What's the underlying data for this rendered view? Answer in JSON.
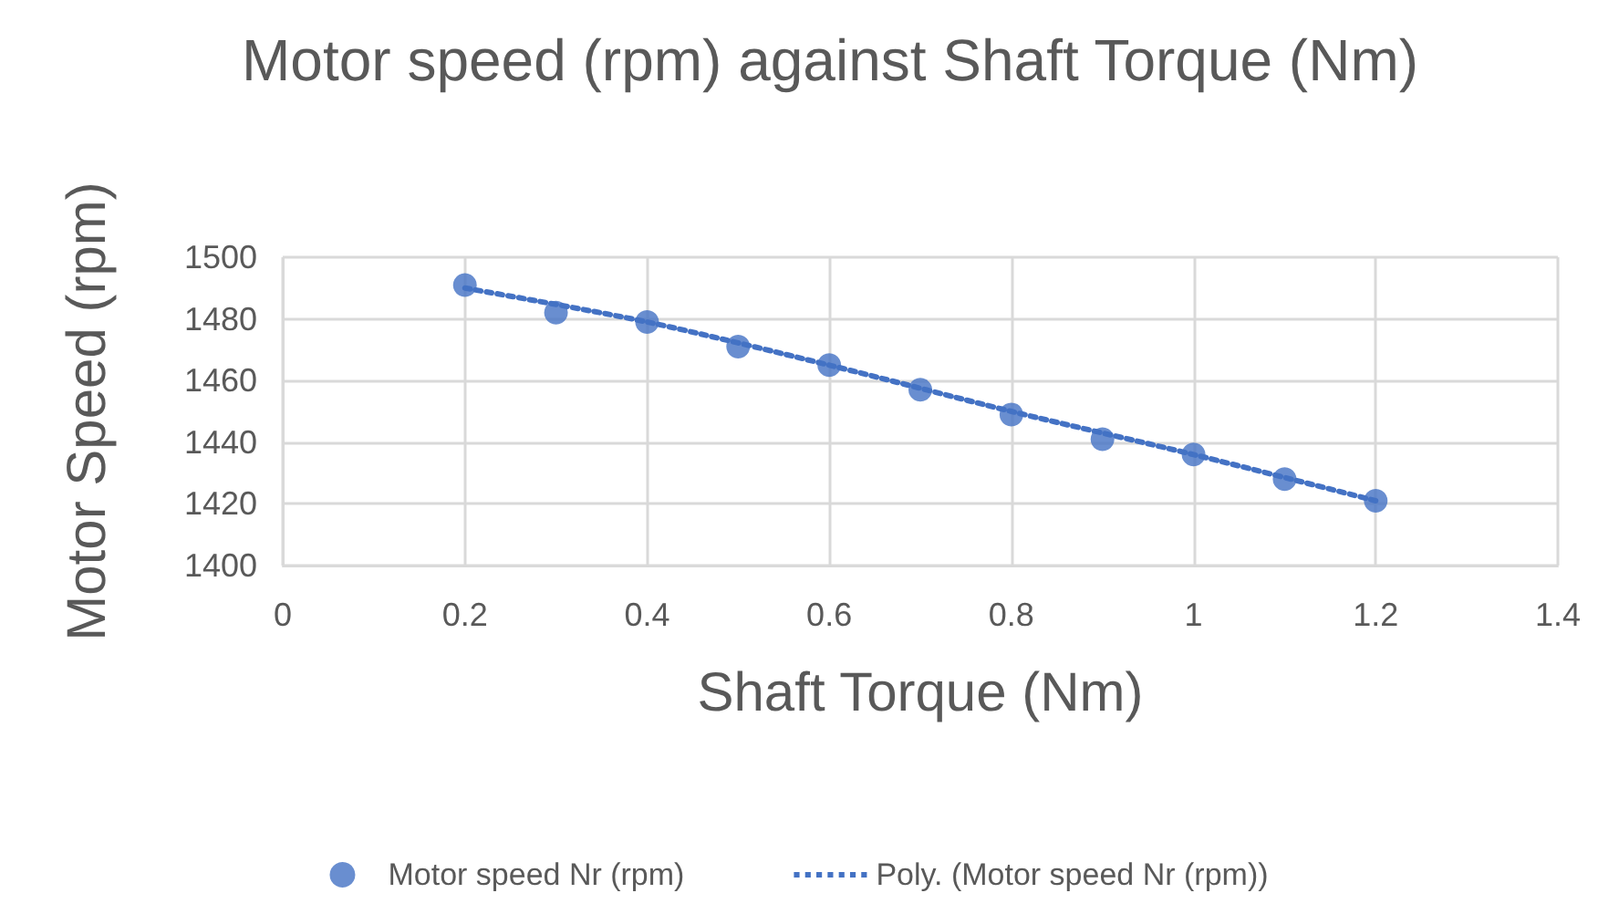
{
  "chart_data": {
    "type": "scatter",
    "title": "Motor speed (rpm) against Shaft Torque (Nm)",
    "xlabel": "Shaft Torque (Nm)",
    "ylabel": "Motor Speed (rpm)",
    "x": [
      0.2,
      0.3,
      0.4,
      0.5,
      0.6,
      0.7,
      0.8,
      0.9,
      1.0,
      1.1,
      1.2
    ],
    "series": [
      {
        "name": "Motor speed Nr (rpm)",
        "color": "#4472c4",
        "values": [
          1491,
          1482,
          1479,
          1471,
          1465,
          1457,
          1449,
          1441,
          1436,
          1428,
          1421
        ]
      },
      {
        "name": "Poly. (Motor speed Nr (rpm))",
        "type": "line",
        "color": "#4472c4",
        "line_style": "dotted",
        "marker": "none",
        "x": [
          0.2,
          0.4,
          0.6,
          0.8,
          1.0,
          1.2
        ],
        "values": [
          1490,
          1479,
          1465,
          1450,
          1436,
          1421
        ]
      }
    ],
    "xlim": [
      0,
      1.4
    ],
    "xticks": [
      0,
      0.2,
      0.4,
      0.6,
      0.8,
      1,
      1.2,
      1.4
    ],
    "ylim": [
      1400,
      1500
    ],
    "yticks": [
      1400,
      1420,
      1440,
      1460,
      1480,
      1500
    ],
    "grid": true,
    "legend": "bottom",
    "marker": "circle"
  }
}
